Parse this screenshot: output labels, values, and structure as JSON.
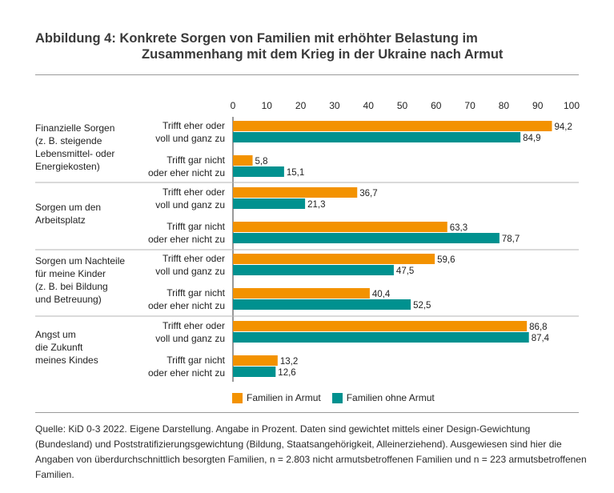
{
  "chart_data": {
    "type": "bar",
    "orientation": "horizontal",
    "title_line1": "Abbildung 4: Konkrete Sorgen von Familien mit erhöhter Belastung im",
    "title_line2": "Zusammenhang mit dem Krieg in der Ukraine nach Armut",
    "xlim": [
      0,
      100
    ],
    "x_ticks": [
      "0",
      "10",
      "20",
      "30",
      "40",
      "50",
      "60",
      "70",
      "80",
      "90",
      "100"
    ],
    "colors": {
      "armut": "#f39200",
      "ohne_armut": "#00918f"
    },
    "legend": [
      "Familien in Armut",
      "Familien ohne Armut"
    ],
    "legend_position": "bottom",
    "groups": [
      {
        "label_lines": [
          "Finanzielle Sorgen",
          "(z. B. steigende",
          "Lebensmittel- oder",
          "Energiekosten)"
        ],
        "rows": [
          {
            "label_lines": [
              "Trifft eher oder",
              "voll und ganz zu"
            ],
            "values": [
              94.2,
              84.9
            ],
            "value_labels": [
              "94,2",
              "84,9"
            ]
          },
          {
            "label_lines": [
              "Trifft gar nicht",
              "oder eher nicht zu"
            ],
            "values": [
              5.8,
              15.1
            ],
            "value_labels": [
              "5,8",
              "15,1"
            ]
          }
        ]
      },
      {
        "label_lines": [
          "Sorgen um den",
          "Arbeitsplatz"
        ],
        "rows": [
          {
            "label_lines": [
              "Trifft eher oder",
              "voll und ganz zu"
            ],
            "values": [
              36.7,
              21.3
            ],
            "value_labels": [
              "36,7",
              "21,3"
            ]
          },
          {
            "label_lines": [
              "Trifft gar nicht",
              "oder eher nicht zu"
            ],
            "values": [
              63.3,
              78.7
            ],
            "value_labels": [
              "63,3",
              "78,7"
            ]
          }
        ]
      },
      {
        "label_lines": [
          "Sorgen um Nachteile",
          "für meine Kinder",
          "(z. B. bei Bildung",
          "und Betreuung)"
        ],
        "rows": [
          {
            "label_lines": [
              "Trifft eher oder",
              "voll und ganz zu"
            ],
            "values": [
              59.6,
              47.5
            ],
            "value_labels": [
              "59,6",
              "47,5"
            ]
          },
          {
            "label_lines": [
              "Trifft gar nicht",
              "oder eher nicht zu"
            ],
            "values": [
              40.4,
              52.5
            ],
            "value_labels": [
              "40,4",
              "52,5"
            ]
          }
        ]
      },
      {
        "label_lines": [
          "Angst um",
          "die Zukunft",
          "meines Kindes"
        ],
        "rows": [
          {
            "label_lines": [
              "Trifft eher oder",
              "voll und ganz zu"
            ],
            "values": [
              86.8,
              87.4
            ],
            "value_labels": [
              "86,8",
              "87,4"
            ]
          },
          {
            "label_lines": [
              "Trifft gar nicht",
              "oder eher nicht zu"
            ],
            "values": [
              13.2,
              12.6
            ],
            "value_labels": [
              "13,2",
              "12,6"
            ]
          }
        ]
      }
    ]
  },
  "source_note": "Quelle: KiD 0-3 2022. Eigene Darstellung. Angabe in Prozent. Daten sind gewichtet mittels einer Design-Gewichtung (Bundesland) und Poststratifizierungsgewichtung (Bildung, Staatsangehörigkeit, Alleinerziehend). Ausgewiesen sind hier die Angaben von überdurchschnittlich besorgten Familien, n = 2.803 nicht armutsbetroffenen Familien und n = 223 armutsbetroffenen Familien."
}
